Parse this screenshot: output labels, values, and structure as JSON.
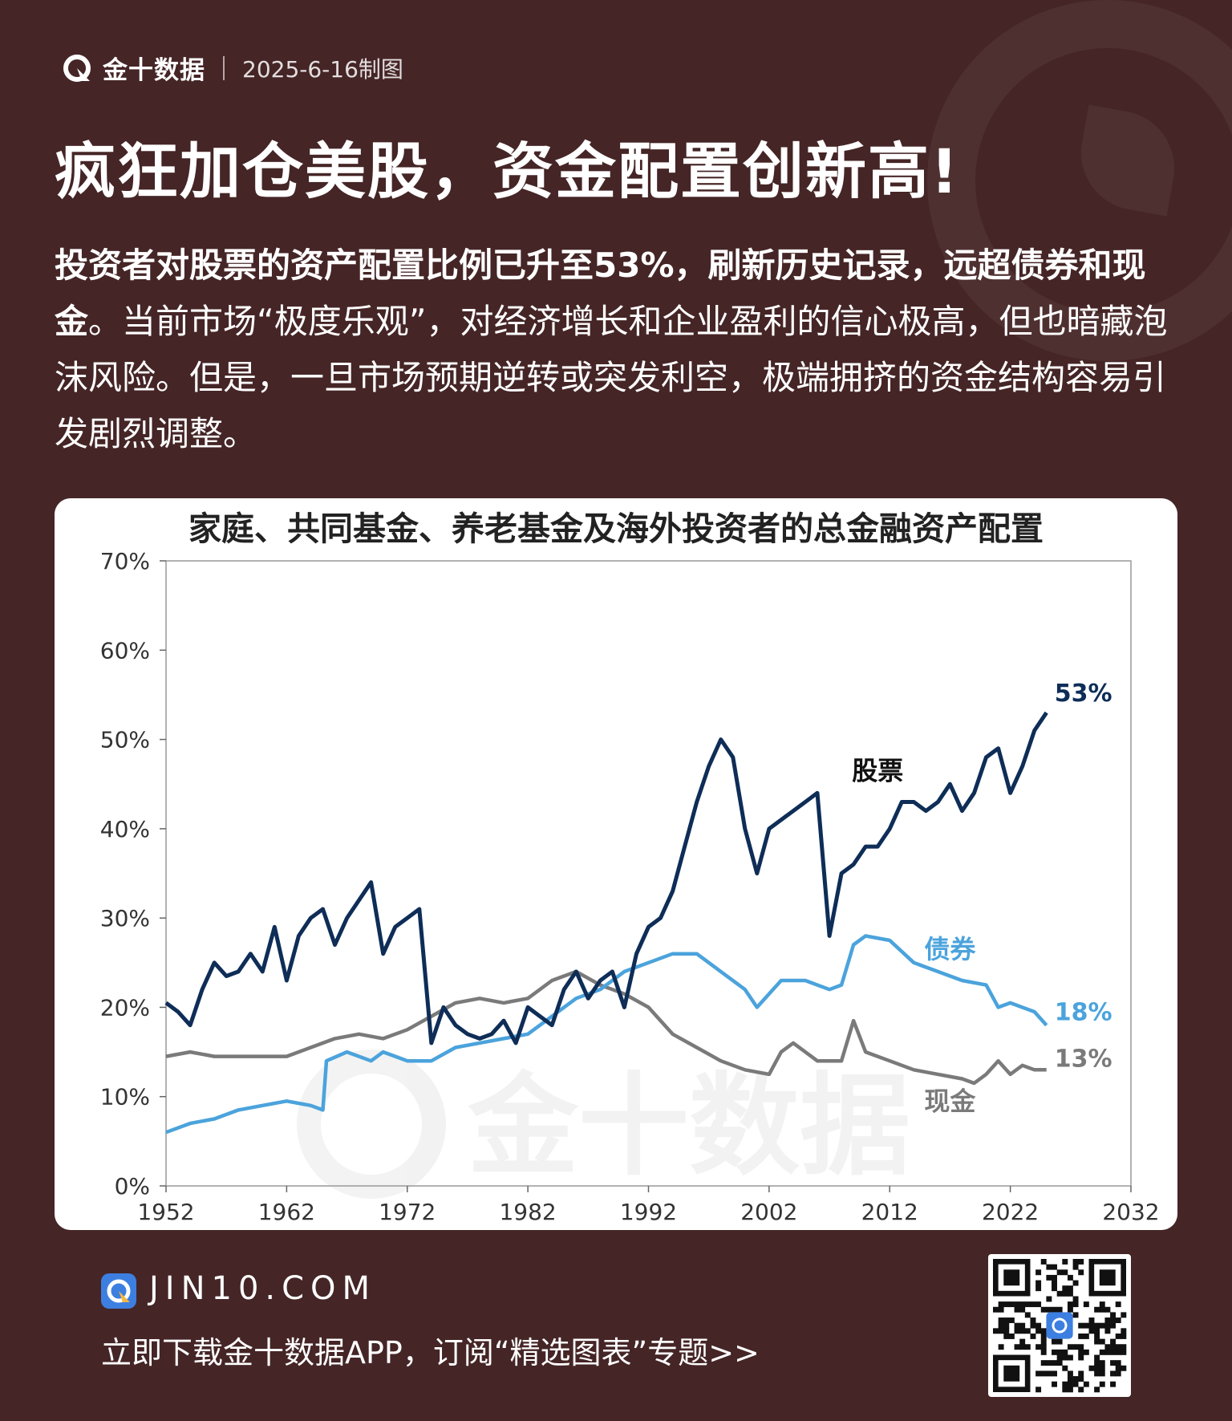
{
  "header": {
    "brand_name": "金十数据",
    "date": "2025-6-16制图"
  },
  "headline": "疯狂加仓美股，资金配置创新高!",
  "summary": {
    "bold": "投资者对股票的资产配置比例已升至53%，刷新历史记录，远超债券和现金",
    "rest": "。当前市场“极度乐观”，对经济增长和企业盈利的信心极高，但也暗藏泡沫风险。但是，一旦市场预期逆转或突发利空，极端拥挤的资金结构容易引发剧烈调整。"
  },
  "watermark": "金十数据",
  "footer": {
    "url": "JIN10.COM",
    "cta": "立即下载金十数据APP，订阅“精选图表”专题>>"
  },
  "colors": {
    "background": "#452526",
    "stocks": "#0e2d57",
    "bonds": "#4ba3dc",
    "cash": "#7a7a7a"
  },
  "chart_data": {
    "type": "line",
    "title": "家庭、共同基金、养老基金及海外投资者的总金融资产配置",
    "xlabel": "",
    "ylabel": "",
    "xlim": [
      1952,
      2032
    ],
    "ylim": [
      0,
      70
    ],
    "x_ticks": [
      "1952",
      "1962",
      "1972",
      "1982",
      "1992",
      "2002",
      "2012",
      "2022",
      "2032"
    ],
    "y_ticks": [
      "0%",
      "10%",
      "20%",
      "30%",
      "40%",
      "50%",
      "60%",
      "70%"
    ],
    "grid": false,
    "legend": "none",
    "series": [
      {
        "name": "股票",
        "color": "#0e2d57",
        "end_label": "53%",
        "x": [
          1952,
          1953,
          1954,
          1955,
          1956,
          1957,
          1958,
          1959,
          1960,
          1961,
          1962,
          1963,
          1964,
          1965,
          1966,
          1967,
          1968,
          1969,
          1970,
          1971,
          1972,
          1973,
          1974,
          1975,
          1976,
          1977,
          1978,
          1979,
          1980,
          1981,
          1982,
          1983,
          1984,
          1985,
          1986,
          1987,
          1988,
          1989,
          1990,
          1991,
          1992,
          1993,
          1994,
          1995,
          1996,
          1997,
          1998,
          1999,
          2000,
          2001,
          2002,
          2003,
          2004,
          2005,
          2006,
          2007,
          2008,
          2009,
          2010,
          2011,
          2012,
          2013,
          2014,
          2015,
          2016,
          2017,
          2018,
          2019,
          2020,
          2021,
          2022,
          2023,
          2024,
          2025
        ],
        "values": [
          20.5,
          19.5,
          18,
          22,
          25,
          23.5,
          24,
          26,
          24,
          29,
          23,
          28,
          30,
          31,
          27,
          30,
          32,
          34,
          26,
          29,
          30,
          31,
          16,
          20,
          18,
          17,
          16.5,
          17,
          18.5,
          16,
          20,
          19,
          18,
          22,
          24,
          21,
          23,
          24,
          20,
          26,
          29,
          30,
          33,
          38,
          43,
          47,
          50,
          48,
          40,
          35,
          40,
          41,
          42,
          43,
          44,
          28,
          35,
          36,
          38,
          38,
          40,
          43,
          43,
          42,
          43,
          45,
          42,
          44,
          48,
          49,
          44,
          47,
          51,
          53
        ]
      },
      {
        "name": "债券",
        "color": "#4ba3dc",
        "end_label": "18%",
        "x": [
          1952,
          1954,
          1956,
          1958,
          1960,
          1962,
          1964,
          1965,
          1965.3,
          1967,
          1969,
          1970,
          1972,
          1974,
          1976,
          1978,
          1980,
          1982,
          1984,
          1986,
          1988,
          1990,
          1992,
          1994,
          1996,
          1998,
          2000,
          2001,
          2003,
          2005,
          2007,
          2008,
          2009,
          2010,
          2012,
          2014,
          2016,
          2018,
          2020,
          2021,
          2022,
          2024,
          2025
        ],
        "values": [
          6,
          7,
          7.5,
          8.5,
          9,
          9.5,
          9,
          8.5,
          14,
          15,
          14,
          15,
          14,
          14,
          15.5,
          16,
          16.5,
          17,
          19,
          21,
          22,
          24,
          25,
          26,
          26,
          24,
          22,
          20,
          23,
          23,
          22,
          22.5,
          27,
          28,
          27.5,
          25,
          24,
          23,
          22.5,
          20,
          20.5,
          19.5,
          18
        ]
      },
      {
        "name": "现金",
        "color": "#7a7a7a",
        "end_label": "13%",
        "x": [
          1952,
          1954,
          1956,
          1958,
          1960,
          1962,
          1964,
          1966,
          1968,
          1970,
          1972,
          1974,
          1976,
          1978,
          1980,
          1982,
          1984,
          1986,
          1988,
          1990,
          1992,
          1994,
          1996,
          1998,
          2000,
          2002,
          2003,
          2004,
          2006,
          2008,
          2009,
          2010,
          2012,
          2014,
          2016,
          2018,
          2019,
          2020,
          2021,
          2022,
          2023,
          2024,
          2025
        ],
        "values": [
          14.5,
          15,
          14.5,
          14.5,
          14.5,
          14.5,
          15.5,
          16.5,
          17,
          16.5,
          17.5,
          19,
          20.5,
          21,
          20.5,
          21,
          23,
          24,
          22.5,
          21.5,
          20,
          17,
          15.5,
          14,
          13,
          12.5,
          15,
          16,
          14,
          14,
          18.5,
          15,
          14,
          13,
          12.5,
          12,
          11.5,
          12.5,
          14,
          12.5,
          13.5,
          13,
          13
        ]
      }
    ],
    "annotations": [
      {
        "text": "股票",
        "series": 0
      },
      {
        "text": "债券",
        "series": 1
      },
      {
        "text": "现金",
        "series": 2
      }
    ]
  }
}
